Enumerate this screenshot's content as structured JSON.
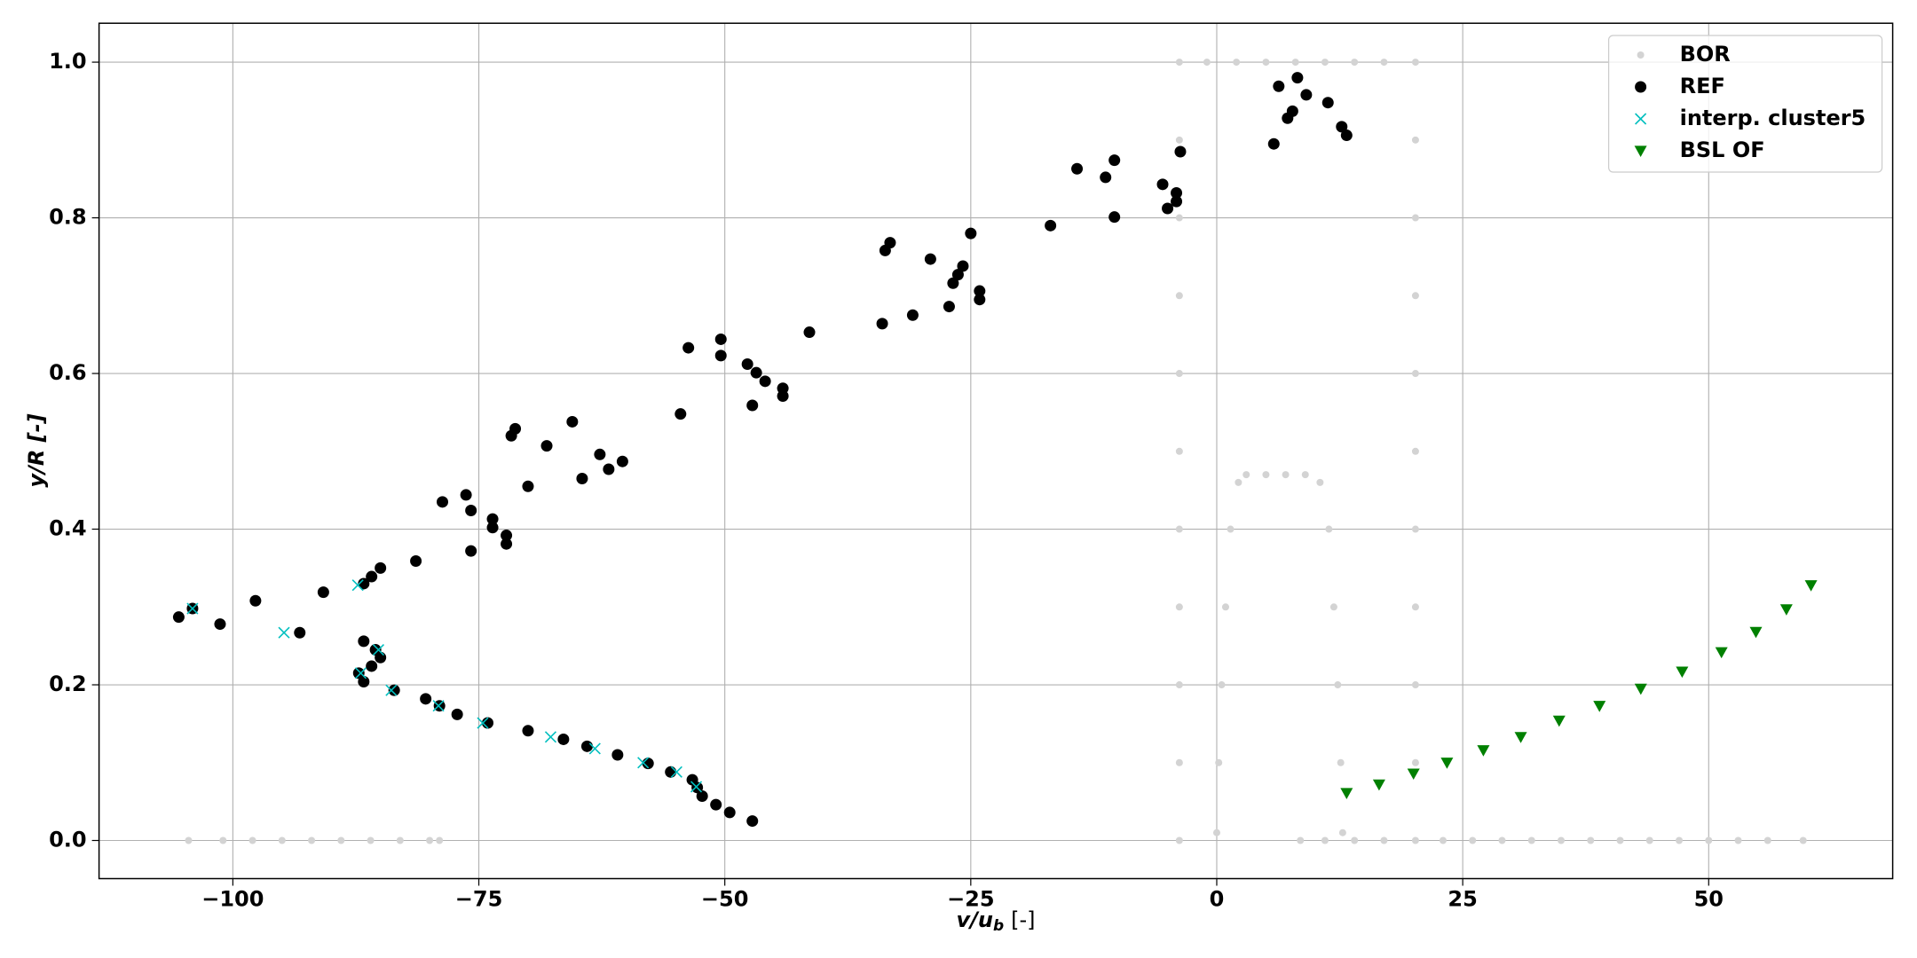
{
  "chart_data": {
    "type": "scatter",
    "xlabel": {
      "main": "v/u",
      "sub": "b",
      "unit": "[-]"
    },
    "ylabel": "y/R [-]",
    "xlim": [
      -113.6,
      68.7
    ],
    "ylim": [
      -0.049,
      1.05
    ],
    "xticks": [
      {
        "value": -100,
        "label": "−100"
      },
      {
        "value": -75,
        "label": "−75"
      },
      {
        "value": -50,
        "label": "−50"
      },
      {
        "value": -25,
        "label": "−25"
      },
      0,
      25,
      50
    ],
    "yticks": [
      {
        "value": 0,
        "label": "0.0"
      },
      0.2,
      0.4,
      0.6,
      0.8,
      {
        "value": 1,
        "label": "1.0"
      }
    ],
    "grid": true,
    "legend": "upper right",
    "series": [
      {
        "name": "BOR",
        "color": "#d3d3d3",
        "marker": "o",
        "x": [
          -104.5,
          -101,
          -98,
          -95,
          -92,
          -89,
          -86,
          -83,
          -80,
          -79,
          -3.8,
          -3.8,
          -3.8,
          -3.8,
          -3.8,
          -3.8,
          -3.8,
          -3.8,
          -3.8,
          -3.8,
          -3.8,
          -1,
          2,
          5,
          8,
          11,
          14,
          17,
          20.2,
          20.2,
          20.2,
          20.2,
          20.2,
          20.2,
          20.2,
          20.2,
          20.2,
          20.2,
          20.2,
          0,
          0.2,
          0.5,
          0.9,
          1.4,
          2.2,
          3,
          5,
          7,
          9,
          10.5,
          11.4,
          11.9,
          12.3,
          12.6,
          12.8,
          8.5,
          11,
          14,
          17,
          23,
          26,
          29,
          32,
          35,
          38,
          41,
          44,
          47,
          50,
          53,
          56,
          59.6
        ],
        "values": [
          0,
          0,
          0,
          0,
          0,
          0,
          0,
          0,
          0,
          0,
          0,
          0.1,
          0.2,
          0.3,
          0.4,
          0.5,
          0.6,
          0.7,
          0.8,
          0.9,
          1,
          1,
          1,
          1,
          1,
          1,
          1,
          1,
          1,
          0.9,
          0.8,
          0.7,
          0.6,
          0.5,
          0.4,
          0.3,
          0.2,
          0.1,
          0,
          0.01,
          0.1,
          0.2,
          0.3,
          0.4,
          0.46,
          0.47,
          0.47,
          0.47,
          0.47,
          0.46,
          0.4,
          0.3,
          0.2,
          0.1,
          0.01,
          0,
          0,
          0,
          0,
          0,
          0,
          0,
          0,
          0,
          0,
          0,
          0,
          0,
          0,
          0,
          0,
          0
        ]
      },
      {
        "name": "REF",
        "color": "#000000",
        "marker": "o",
        "x": [
          -105.5,
          -104.1,
          -101.3,
          -97.7,
          -93.2,
          -90.8,
          -86.7,
          -85.9,
          -85.0,
          -81.4,
          -78.7,
          -76.3,
          -75.8,
          -75.8,
          -73.6,
          -73.6,
          -72.2,
          -72.2,
          -71.7,
          -71.3,
          -70.0,
          -68.1,
          -65.5,
          -64.5,
          -62.7,
          -61.8,
          -60.4,
          -54.5,
          -53.7,
          -50.4,
          -50.4,
          -47.7,
          -47.2,
          -46.8,
          -45.9,
          -44.1,
          -44.1,
          -41.4,
          -34.0,
          -33.7,
          -33.2,
          -30.9,
          -29.1,
          -27.2,
          -26.8,
          -26.3,
          -25.8,
          -25.0,
          -24.1,
          -24.1,
          -16.9,
          -14.2,
          -11.3,
          -10.4,
          -10.4,
          -5.5,
          -5.0,
          -4.1,
          -4.1,
          -3.7,
          5.8,
          6.3,
          7.2,
          7.7,
          8.2,
          9.1,
          11.3,
          12.7,
          13.2,
          -86.7,
          -85.5,
          -85.0,
          -85.9,
          -87.2,
          -86.7,
          -83.6,
          -80.4,
          -79.0,
          -77.2,
          -74.1,
          -70.0,
          -66.4,
          -64.0,
          -60.9,
          -57.8,
          -55.5,
          -53.3,
          -52.8,
          -52.3,
          -50.9,
          -49.5,
          -47.2
        ],
        "values": [
          0.287,
          0.298,
          0.278,
          0.308,
          0.267,
          0.319,
          0.33,
          0.339,
          0.35,
          0.359,
          0.435,
          0.444,
          0.424,
          0.372,
          0.413,
          0.402,
          0.392,
          0.381,
          0.52,
          0.529,
          0.455,
          0.507,
          0.538,
          0.465,
          0.496,
          0.477,
          0.487,
          0.548,
          0.633,
          0.644,
          0.623,
          0.612,
          0.559,
          0.601,
          0.59,
          0.581,
          0.571,
          0.653,
          0.664,
          0.758,
          0.768,
          0.675,
          0.747,
          0.686,
          0.716,
          0.727,
          0.738,
          0.78,
          0.706,
          0.695,
          0.79,
          0.863,
          0.852,
          0.874,
          0.801,
          0.843,
          0.812,
          0.832,
          0.821,
          0.885,
          0.895,
          0.969,
          0.928,
          0.937,
          0.98,
          0.958,
          0.948,
          0.917,
          0.906,
          0.256,
          0.245,
          0.235,
          0.224,
          0.215,
          0.204,
          0.193,
          0.182,
          0.173,
          0.162,
          0.151,
          0.141,
          0.13,
          0.121,
          0.11,
          0.099,
          0.088,
          0.078,
          0.068,
          0.057,
          0.046,
          0.036,
          0.025
        ]
      },
      {
        "name": "interp. cluster5",
        "color": "#00bfbf",
        "marker": "x",
        "x": [
          -104.1,
          -94.8,
          -87.3,
          -85.2,
          -87.0,
          -83.9,
          -79.1,
          -74.6,
          -67.7,
          -63.2,
          -58.3,
          -54.9,
          -52.9
        ],
        "values": [
          0.298,
          0.267,
          0.328,
          0.245,
          0.215,
          0.193,
          0.173,
          0.151,
          0.133,
          0.118,
          0.1,
          0.088,
          0.069
        ]
      },
      {
        "name": "BSL OF",
        "color": "#008000",
        "marker": "v",
        "x": [
          13.2,
          16.5,
          20.0,
          23.4,
          27.1,
          30.9,
          34.8,
          38.9,
          43.1,
          47.3,
          51.3,
          54.8,
          57.9,
          60.4
        ],
        "values": [
          0.061,
          0.072,
          0.086,
          0.1,
          0.116,
          0.133,
          0.154,
          0.173,
          0.195,
          0.217,
          0.242,
          0.268,
          0.297,
          0.328
        ]
      }
    ]
  }
}
